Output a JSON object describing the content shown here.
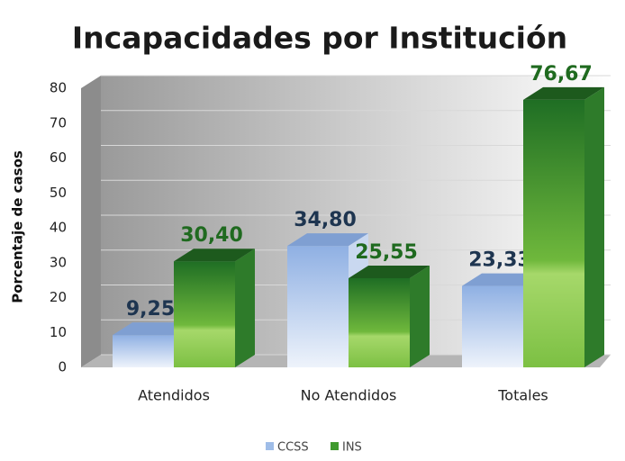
{
  "chart_data": {
    "type": "bar3d",
    "title": "Incapacidades por Institución",
    "ylabel": "Porcentaje de casos",
    "categories": [
      "Atendidos",
      "No Atendidos",
      "Totales"
    ],
    "series": [
      {
        "name": "CCSS",
        "color": "#9fbde8",
        "values": [
          9.25,
          34.8,
          23.33
        ],
        "value_labels": [
          "9,25",
          "34,80",
          "23,33"
        ]
      },
      {
        "name": "INS",
        "color": "#3f9a2e",
        "values": [
          30.4,
          25.55,
          76.67
        ],
        "value_labels": [
          "30,40",
          "25,55",
          "76,67"
        ]
      }
    ],
    "ylim": [
      0,
      80
    ],
    "yticks": [
      0,
      10,
      20,
      30,
      40,
      50,
      60,
      70,
      80
    ],
    "grid": true,
    "legend": "bottom"
  }
}
